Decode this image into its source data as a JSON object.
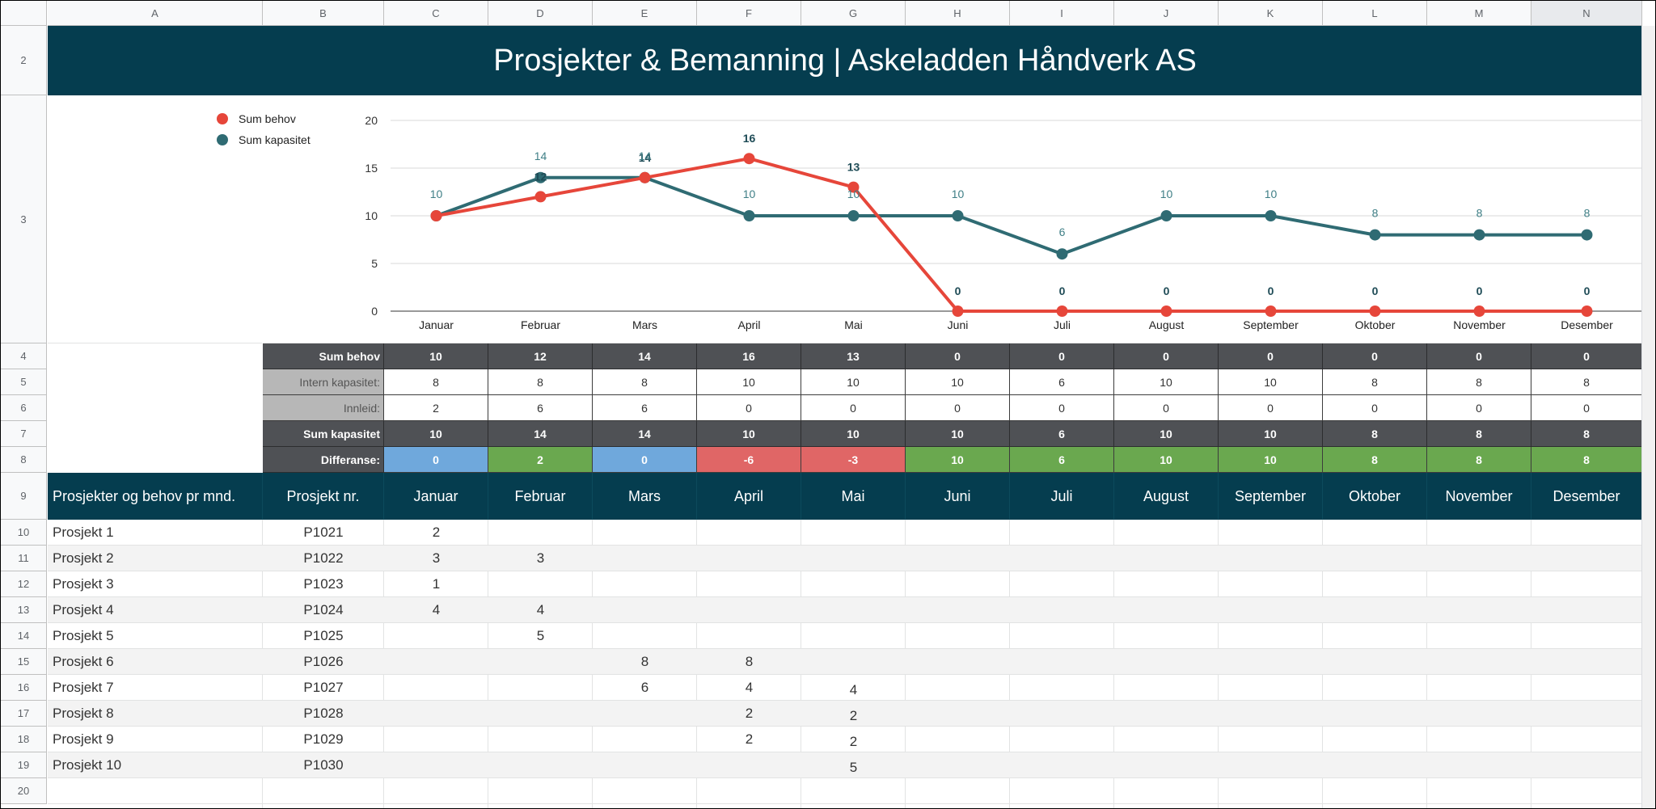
{
  "sheet": {
    "columns": [
      "A",
      "B",
      "C",
      "D",
      "E",
      "F",
      "G",
      "H",
      "I",
      "J",
      "K",
      "L",
      "M",
      "N"
    ],
    "selected_column": "N",
    "rows": [
      "2",
      "3",
      "4",
      "5",
      "6",
      "7",
      "8",
      "9",
      "10",
      "11",
      "12",
      "13",
      "14",
      "15",
      "16",
      "17",
      "18",
      "19",
      "20"
    ]
  },
  "title": "Prosjekter & Bemanning | Askeladden Håndverk AS",
  "colors": {
    "dark_teal": "#053d4f",
    "behov": "#e6463a",
    "kapasitet": "#2f6b73",
    "diff_blue": "#6fa8dc",
    "diff_green": "#6aa84f",
    "diff_red": "#e06666",
    "sum_gray": "#4f5155"
  },
  "chart_data": {
    "type": "line",
    "categories": [
      "Januar",
      "Februar",
      "Mars",
      "April",
      "Mai",
      "Juni",
      "Juli",
      "August",
      "September",
      "Oktober",
      "November",
      "Desember"
    ],
    "series": [
      {
        "name": "Sum behov",
        "values": [
          10,
          12,
          14,
          16,
          13,
          0,
          0,
          0,
          0,
          0,
          0,
          0
        ],
        "color": "#e6463a"
      },
      {
        "name": "Sum kapasitet",
        "values": [
          10,
          14,
          14,
          10,
          10,
          10,
          6,
          10,
          10,
          8,
          8,
          8
        ],
        "color": "#2f6b73"
      }
    ],
    "ylim": [
      0,
      20
    ],
    "yticks": [
      "0",
      "5",
      "10",
      "15",
      "20"
    ],
    "grid": true,
    "legend": "top-left",
    "data_labels": true
  },
  "summary": {
    "labels": {
      "sum_behov": "Sum behov",
      "intern": "Intern kapasitet:",
      "innleid": "Innleid:",
      "sum_kapasitet": "Sum kapasitet",
      "differanse": "Differanse:"
    },
    "sum_behov": [
      "10",
      "12",
      "14",
      "16",
      "13",
      "0",
      "0",
      "0",
      "0",
      "0",
      "0",
      "0"
    ],
    "intern": [
      "8",
      "8",
      "8",
      "10",
      "10",
      "10",
      "6",
      "10",
      "10",
      "8",
      "8",
      "8"
    ],
    "innleid": [
      "2",
      "6",
      "6",
      "0",
      "0",
      "0",
      "0",
      "0",
      "0",
      "0",
      "0",
      "0"
    ],
    "sum_kapasitet": [
      "10",
      "14",
      "14",
      "10",
      "10",
      "10",
      "6",
      "10",
      "10",
      "8",
      "8",
      "8"
    ],
    "differanse": [
      "0",
      "2",
      "0",
      "-6",
      "-3",
      "10",
      "6",
      "10",
      "10",
      "8",
      "8",
      "8"
    ]
  },
  "table": {
    "header_label": "Prosjekter og behov pr mnd.",
    "header_nr": "Prosjekt nr.",
    "months": [
      "Januar",
      "Februar",
      "Mars",
      "April",
      "Mai",
      "Juni",
      "Juli",
      "August",
      "September",
      "Oktober",
      "November",
      "Desember"
    ],
    "projects": [
      {
        "name": "Prosjekt 1",
        "nr": "P1021",
        "values": [
          "2",
          "",
          "",
          "",
          "",
          "",
          "",
          "",
          "",
          "",
          "",
          ""
        ]
      },
      {
        "name": "Prosjekt 2",
        "nr": "P1022",
        "values": [
          "3",
          "3",
          "",
          "",
          "",
          "",
          "",
          "",
          "",
          "",
          "",
          ""
        ]
      },
      {
        "name": "Prosjekt 3",
        "nr": "P1023",
        "values": [
          "1",
          "",
          "",
          "",
          "",
          "",
          "",
          "",
          "",
          "",
          "",
          ""
        ]
      },
      {
        "name": "Prosjekt 4",
        "nr": "P1024",
        "values": [
          "4",
          "4",
          "",
          "",
          "",
          "",
          "",
          "",
          "",
          "",
          "",
          ""
        ]
      },
      {
        "name": "Prosjekt 5",
        "nr": "P1025",
        "values": [
          "",
          "5",
          "",
          "",
          "",
          "",
          "",
          "",
          "",
          "",
          "",
          ""
        ]
      },
      {
        "name": "Prosjekt 6",
        "nr": "P1026",
        "values": [
          "",
          "",
          "8",
          "8",
          "",
          "",
          "",
          "",
          "",
          "",
          "",
          ""
        ]
      },
      {
        "name": "Prosjekt 7",
        "nr": "P1027",
        "values": [
          "",
          "",
          "6",
          "4",
          "4",
          "",
          "",
          "",
          "",
          "",
          "",
          ""
        ]
      },
      {
        "name": "Prosjekt 8",
        "nr": "P1028",
        "values": [
          "",
          "",
          "",
          "2",
          "2",
          "",
          "",
          "",
          "",
          "",
          "",
          ""
        ]
      },
      {
        "name": "Prosjekt 9",
        "nr": "P1029",
        "values": [
          "",
          "",
          "",
          "2",
          "2",
          "",
          "",
          "",
          "",
          "",
          "",
          ""
        ]
      },
      {
        "name": "Prosjekt 10",
        "nr": "P1030",
        "values": [
          "",
          "",
          "",
          "",
          "5",
          "",
          "",
          "",
          "",
          "",
          "",
          ""
        ]
      }
    ]
  }
}
